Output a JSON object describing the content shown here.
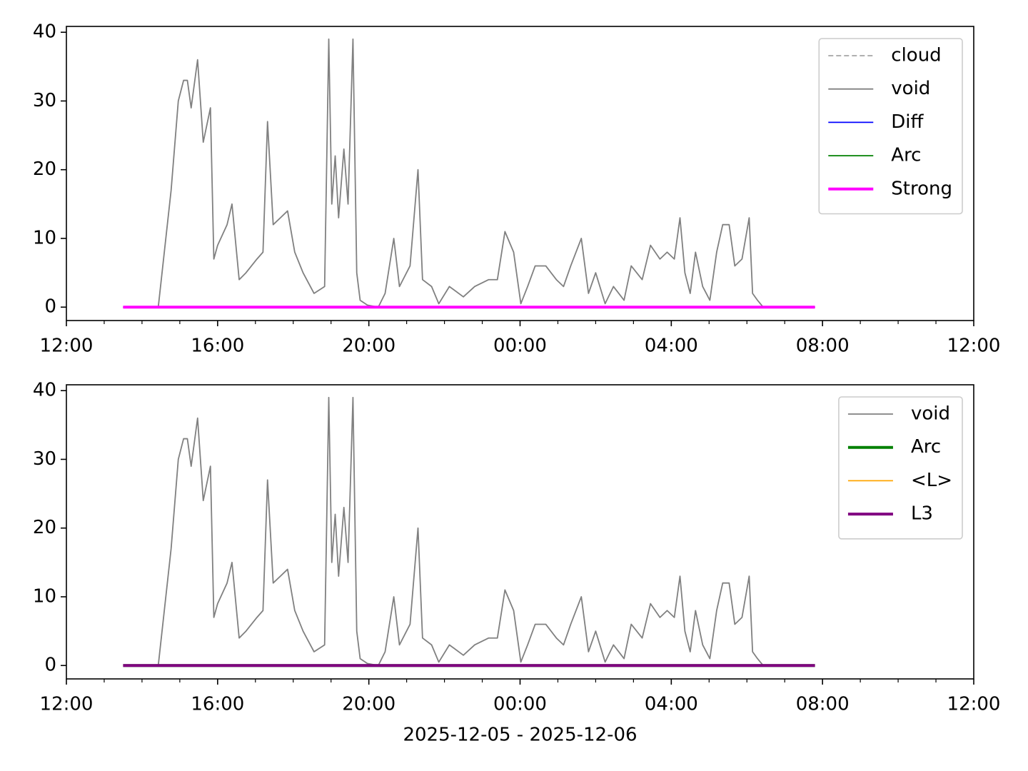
{
  "chart_data": [
    {
      "type": "line",
      "xlim": [
        12,
        36
      ],
      "ylim": [
        -1.95,
        40.85
      ],
      "xticks": [
        {
          "value": 12,
          "label": "12:00"
        },
        {
          "value": 16,
          "label": "16:00"
        },
        {
          "value": 20,
          "label": "20:00"
        },
        {
          "value": 24,
          "label": "00:00"
        },
        {
          "value": 28,
          "label": "04:00"
        },
        {
          "value": 32,
          "label": "08:00"
        },
        {
          "value": 36,
          "label": "12:00"
        }
      ],
      "xminorticks": [
        13,
        14,
        15,
        17,
        18,
        19,
        21,
        22,
        23,
        25,
        26,
        27,
        29,
        30,
        31,
        33,
        34,
        35
      ],
      "yticks": [
        0,
        10,
        20,
        30,
        40
      ],
      "legend": "upper right",
      "series": [
        {
          "name": "cloud",
          "color": "#808080",
          "linewidth": 1.3,
          "linestyle": "dashed",
          "x": [
            13.5,
            31.8
          ],
          "values": [
            0,
            0
          ]
        },
        {
          "name": "void",
          "color": "#808080",
          "linewidth": 1.8,
          "x": [
            13.5,
            14.43,
            14.77,
            14.96,
            15.1,
            15.2,
            15.3,
            15.47,
            15.62,
            15.81,
            15.9,
            16.0,
            16.25,
            16.38,
            16.57,
            16.75,
            17.04,
            17.2,
            17.32,
            17.47,
            17.66,
            17.85,
            18.04,
            18.26,
            18.55,
            18.83,
            18.94,
            19.02,
            19.11,
            19.2,
            19.34,
            19.45,
            19.58,
            19.68,
            19.77,
            19.96,
            20.25,
            20.43,
            20.66,
            20.81,
            21.09,
            21.3,
            21.42,
            21.66,
            21.85,
            22.13,
            22.5,
            22.8,
            23.17,
            23.4,
            23.6,
            23.83,
            24.02,
            24.2,
            24.4,
            24.68,
            24.96,
            25.15,
            25.34,
            25.62,
            25.81,
            26.0,
            26.25,
            26.47,
            26.75,
            26.94,
            27.23,
            27.45,
            27.7,
            27.89,
            28.08,
            28.23,
            28.36,
            28.5,
            28.64,
            28.83,
            29.02,
            29.2,
            29.36,
            29.53,
            29.68,
            29.87,
            30.06,
            30.15,
            30.28,
            30.43,
            31.8
          ],
          "values": [
            null,
            0,
            17,
            30,
            33,
            33,
            29,
            36,
            24,
            29,
            7,
            9,
            12,
            15,
            4,
            5,
            7,
            8,
            27,
            12,
            13,
            14,
            8,
            5,
            2,
            3,
            39,
            15,
            22,
            13,
            23,
            15,
            39,
            5,
            1,
            0.3,
            0,
            2,
            10,
            3,
            6,
            20,
            4,
            3,
            0.5,
            3,
            1.5,
            3,
            4,
            4,
            11,
            8,
            0.5,
            3,
            6,
            6,
            4,
            3,
            6,
            10,
            2,
            5,
            0.5,
            3,
            1,
            6,
            4,
            9,
            7,
            8,
            7,
            13,
            5,
            2,
            8,
            3,
            1,
            8,
            12,
            12,
            6,
            7,
            13,
            2,
            1,
            0,
            null
          ]
        },
        {
          "name": "Diff",
          "color": "#0000ff",
          "linewidth": 1.8,
          "x": [
            13.5,
            31.8
          ],
          "values": [
            0,
            0
          ]
        },
        {
          "name": "Arc",
          "color": "#008000",
          "linewidth": 1.8,
          "x": [
            13.5,
            31.8
          ],
          "values": [
            0,
            0
          ]
        },
        {
          "name": "Strong",
          "color": "#ff00ff",
          "linewidth": 4,
          "x": [
            13.5,
            31.8
          ],
          "values": [
            0,
            0
          ]
        }
      ]
    },
    {
      "type": "line",
      "xlabel": "2025-12-05 - 2025-12-06",
      "xlim": [
        12,
        36
      ],
      "ylim": [
        -1.95,
        40.85
      ],
      "xticks": [
        {
          "value": 12,
          "label": "12:00"
        },
        {
          "value": 16,
          "label": "16:00"
        },
        {
          "value": 20,
          "label": "20:00"
        },
        {
          "value": 24,
          "label": "00:00"
        },
        {
          "value": 28,
          "label": "04:00"
        },
        {
          "value": 32,
          "label": "08:00"
        },
        {
          "value": 36,
          "label": "12:00"
        }
      ],
      "xminorticks": [
        13,
        14,
        15,
        17,
        18,
        19,
        21,
        22,
        23,
        25,
        26,
        27,
        29,
        30,
        31,
        33,
        34,
        35
      ],
      "yticks": [
        0,
        10,
        20,
        30,
        40
      ],
      "legend": "upper right",
      "series": [
        {
          "name": "void",
          "color": "#808080",
          "linewidth": 1.8,
          "x": [
            13.5,
            14.43,
            14.77,
            14.96,
            15.1,
            15.2,
            15.3,
            15.47,
            15.62,
            15.81,
            15.9,
            16.0,
            16.25,
            16.38,
            16.57,
            16.75,
            17.04,
            17.2,
            17.32,
            17.47,
            17.66,
            17.85,
            18.04,
            18.26,
            18.55,
            18.83,
            18.94,
            19.02,
            19.11,
            19.2,
            19.34,
            19.45,
            19.58,
            19.68,
            19.77,
            19.96,
            20.25,
            20.43,
            20.66,
            20.81,
            21.09,
            21.3,
            21.42,
            21.66,
            21.85,
            22.13,
            22.5,
            22.8,
            23.17,
            23.4,
            23.6,
            23.83,
            24.02,
            24.2,
            24.4,
            24.68,
            24.96,
            25.15,
            25.34,
            25.62,
            25.81,
            26.0,
            26.25,
            26.47,
            26.75,
            26.94,
            27.23,
            27.45,
            27.7,
            27.89,
            28.08,
            28.23,
            28.36,
            28.5,
            28.64,
            28.83,
            29.02,
            29.2,
            29.36,
            29.53,
            29.68,
            29.87,
            30.06,
            30.15,
            30.28,
            30.43,
            31.8
          ],
          "values": [
            null,
            0,
            17,
            30,
            33,
            33,
            29,
            36,
            24,
            29,
            7,
            9,
            12,
            15,
            4,
            5,
            7,
            8,
            27,
            12,
            13,
            14,
            8,
            5,
            2,
            3,
            39,
            15,
            22,
            13,
            23,
            15,
            39,
            5,
            1,
            0.3,
            0,
            2,
            10,
            3,
            6,
            20,
            4,
            3,
            0.5,
            3,
            1.5,
            3,
            4,
            4,
            11,
            8,
            0.5,
            3,
            6,
            6,
            4,
            3,
            6,
            10,
            2,
            5,
            0.5,
            3,
            1,
            6,
            4,
            9,
            7,
            8,
            7,
            13,
            5,
            2,
            8,
            3,
            1,
            8,
            12,
            12,
            6,
            7,
            13,
            2,
            1,
            0,
            null
          ]
        },
        {
          "name": "Arc",
          "color": "#008000",
          "linewidth": 4,
          "x": [
            13.5,
            31.8
          ],
          "values": [
            0,
            0
          ]
        },
        {
          "name": "<L>",
          "color": "#ffa500",
          "linewidth": 1.8,
          "x": [
            13.5,
            31.8
          ],
          "values": [
            0,
            0
          ]
        },
        {
          "name": "L3",
          "color": "#800080",
          "linewidth": 4,
          "x": [
            13.5,
            31.8
          ],
          "values": [
            0,
            0
          ]
        }
      ]
    }
  ]
}
